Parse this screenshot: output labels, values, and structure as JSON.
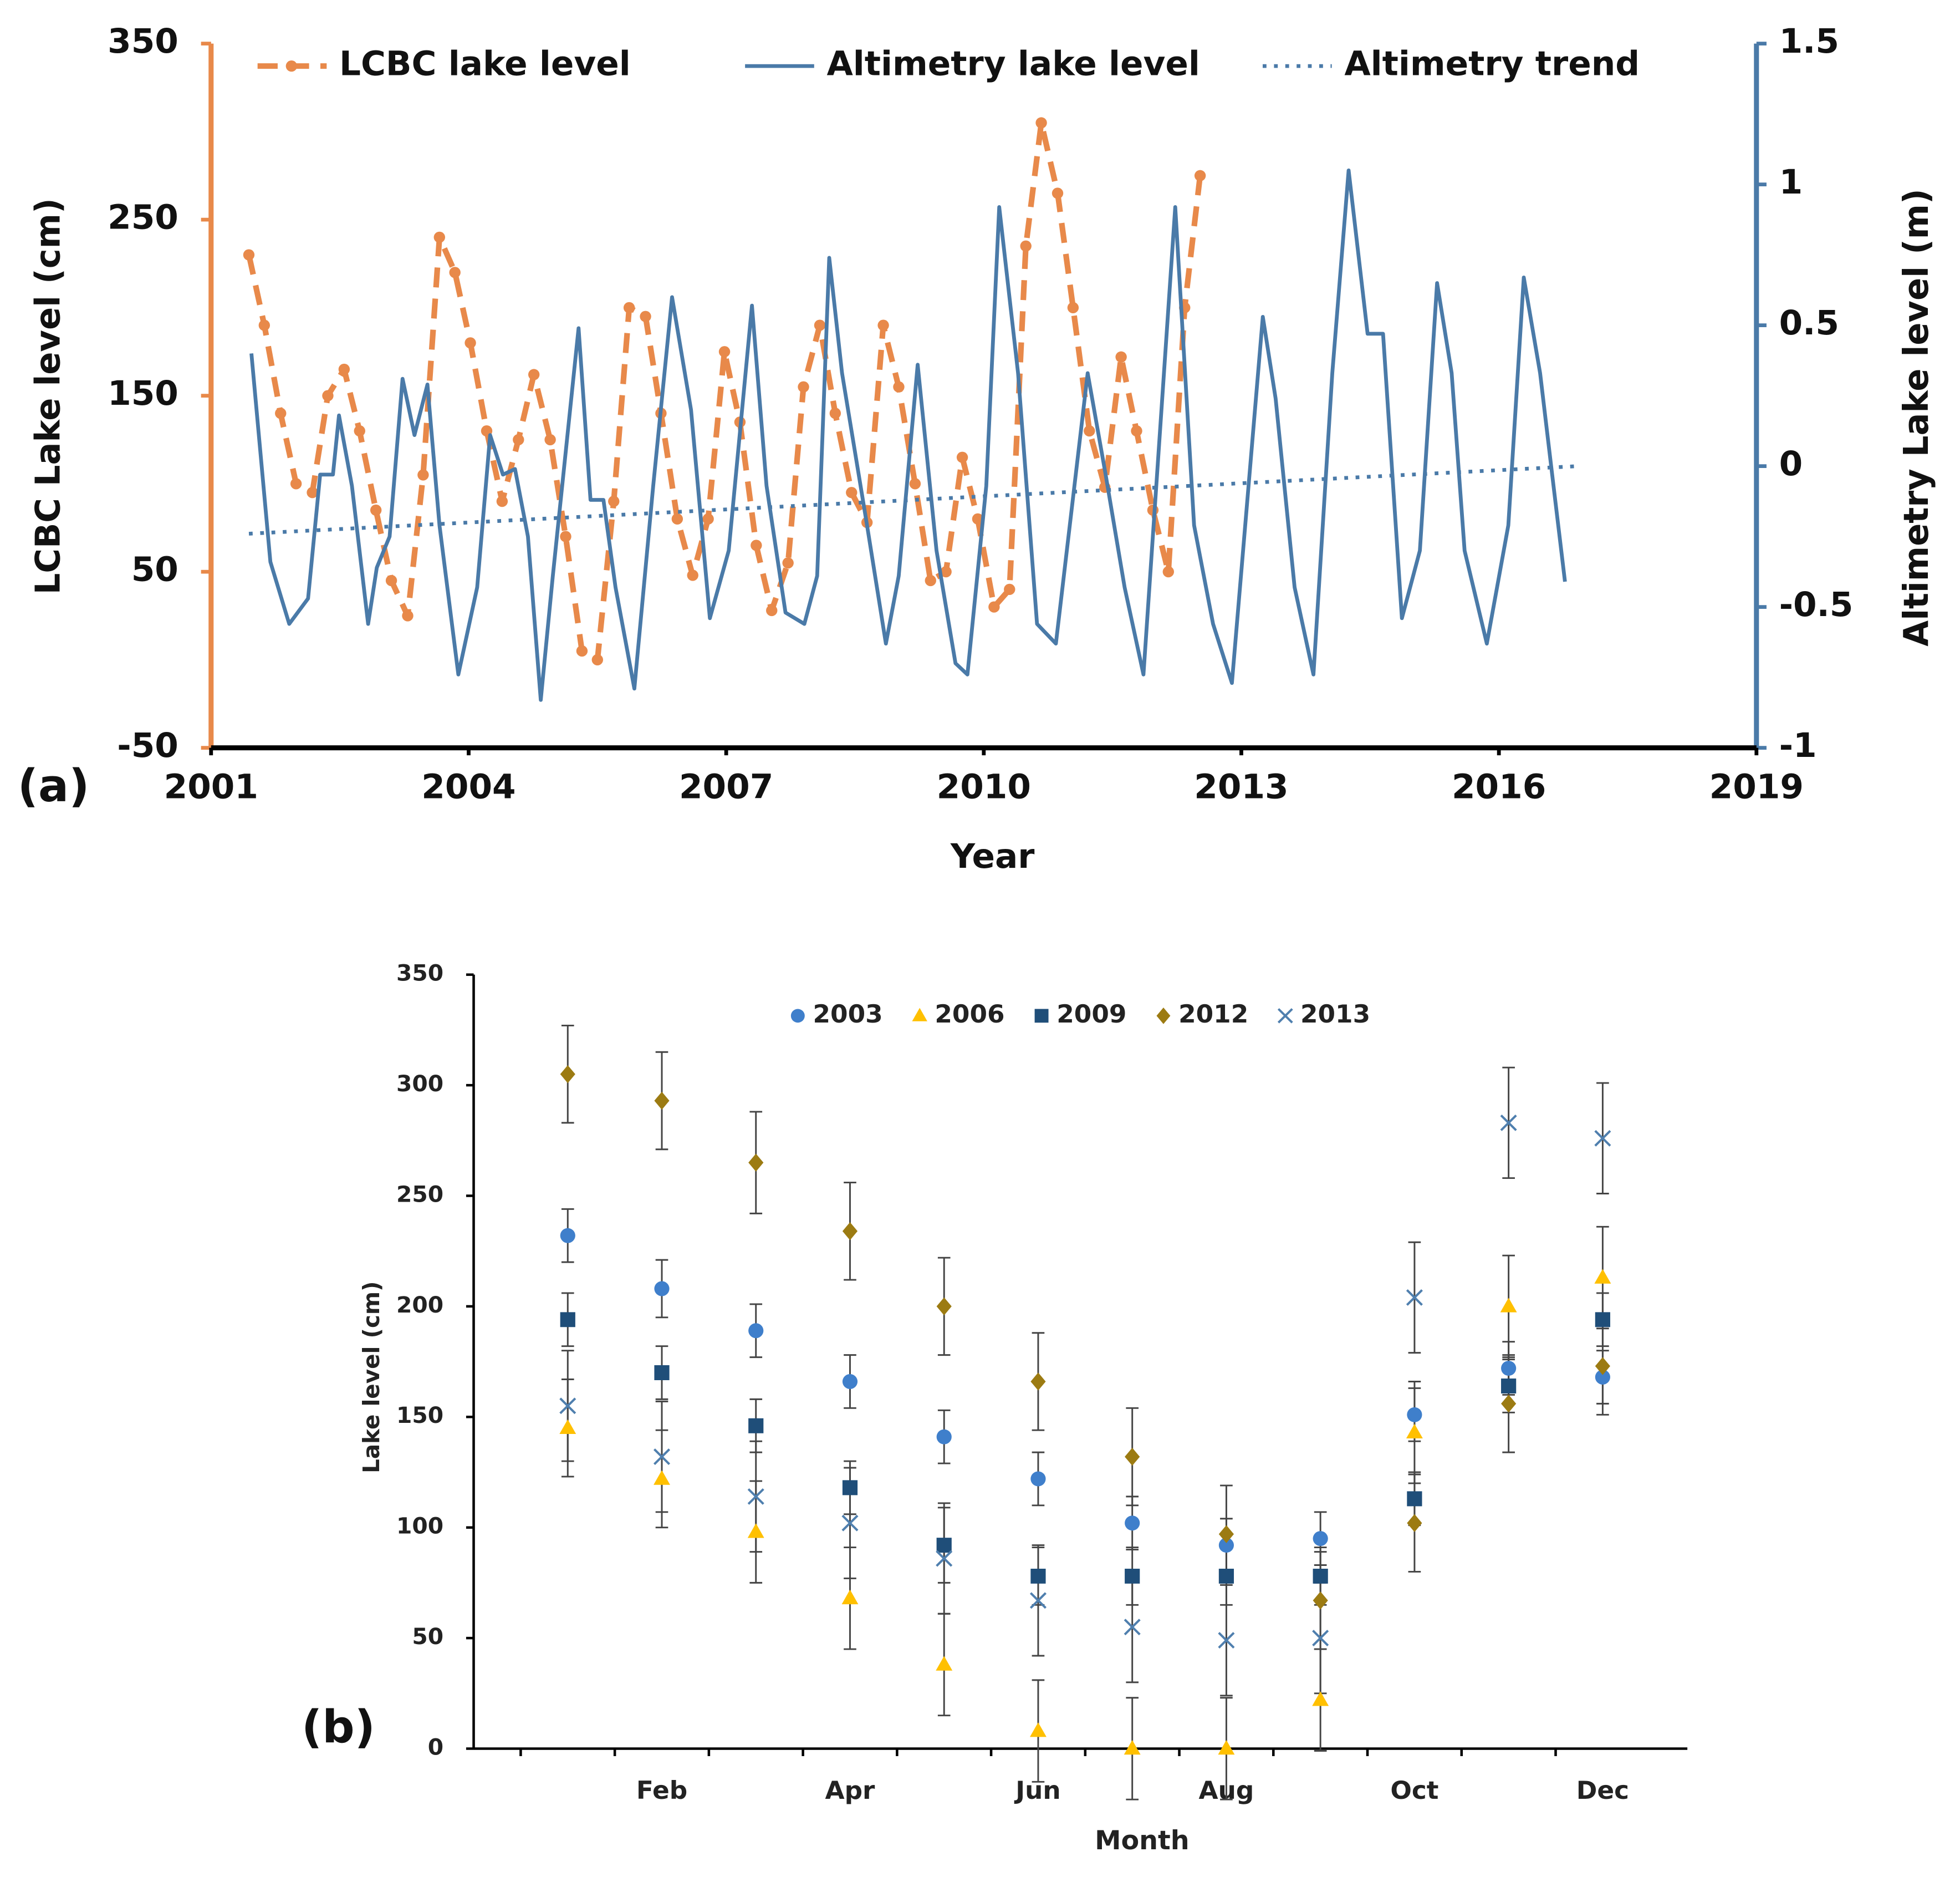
{
  "chart_data": [
    {
      "type": "line",
      "annotation": "(a)",
      "xlabel": "Year",
      "ylabel": "LCBC Lake level (cm)",
      "y2label": "Altimetry Lake level (m)",
      "xlim": [
        2001,
        2019
      ],
      "xticks": [
        2001,
        2004,
        2007,
        2010,
        2013,
        2016,
        2019
      ],
      "ylim": [
        -50,
        350
      ],
      "yticks": [
        -50,
        50,
        150,
        250,
        350
      ],
      "y2lim": [
        -1,
        1.5
      ],
      "y2ticks": [
        -1,
        -0.5,
        0,
        0.5,
        1,
        1.5
      ],
      "legend": "top",
      "series": [
        {
          "name": "LCBC lake level",
          "color": "#e8894a",
          "style": "dashed",
          "marker": "circle",
          "x": [
            2001.44,
            2001.62,
            2001.81,
            2001.99,
            2002.18,
            2002.36,
            2002.55,
            2002.73,
            2002.92,
            2003.1,
            2003.29,
            2003.47,
            2003.66,
            2003.84,
            2004.02,
            2004.21,
            2004.39,
            2004.58,
            2004.76,
            2004.95,
            2005.13,
            2005.32,
            2005.5,
            2005.69,
            2005.87,
            2006.06,
            2006.24,
            2006.43,
            2006.61,
            2006.79,
            2006.98,
            2007.16,
            2007.35,
            2007.53,
            2007.72,
            2007.9,
            2008.09,
            2008.27,
            2008.46,
            2008.64,
            2008.83,
            2009.01,
            2009.2,
            2009.38,
            2009.56,
            2009.75,
            2009.93,
            2010.12,
            2010.3,
            2010.49,
            2010.67,
            2010.86,
            2011.04,
            2011.23,
            2011.41,
            2011.6,
            2011.78,
            2011.97,
            2012.15,
            2012.34,
            2012.52
          ],
          "values": [
            230,
            190,
            140,
            100,
            95,
            150,
            165,
            130,
            85,
            45,
            25,
            105,
            240,
            220,
            180,
            130,
            90,
            125,
            162,
            125,
            70,
            5,
            0,
            90,
            200,
            195,
            140,
            80,
            48,
            80,
            175,
            135,
            65,
            28,
            55,
            155,
            190,
            140,
            95,
            78,
            190,
            155,
            100,
            45,
            50,
            115,
            80,
            30,
            40,
            235,
            305,
            265,
            200,
            130,
            98,
            172,
            130,
            85,
            50,
            200,
            275
          ]
        },
        {
          "name": "Altimetry lake level",
          "color": "#4a7aa8",
          "style": "solid",
          "axis": "y2",
          "x": [
            2001.47,
            2001.69,
            2001.91,
            2002.13,
            2002.27,
            2002.42,
            2002.49,
            2002.64,
            2002.83,
            2002.93,
            2003.08,
            2003.23,
            2003.37,
            2003.52,
            2003.66,
            2003.88,
            2004.1,
            2004.25,
            2004.4,
            2004.54,
            2004.69,
            2004.84,
            2004.98,
            2005.28,
            2005.42,
            2005.57,
            2005.71,
            2005.93,
            2006.15,
            2006.37,
            2006.59,
            2006.81,
            2007.03,
            2007.3,
            2007.47,
            2007.69,
            2007.91,
            2008.06,
            2008.2,
            2008.35,
            2008.64,
            2008.86,
            2009.01,
            2009.23,
            2009.45,
            2009.67,
            2009.81,
            2010.03,
            2010.18,
            2010.4,
            2010.62,
            2010.84,
            2011.21,
            2011.42,
            2011.64,
            2011.86,
            2012.23,
            2012.45,
            2012.67,
            2012.89,
            2013.25,
            2013.4,
            2013.62,
            2013.84,
            2014.06,
            2014.25,
            2014.47,
            2014.65,
            2014.87,
            2015.08,
            2015.28,
            2015.45,
            2015.6,
            2015.86,
            2016.11,
            2016.29,
            2016.48,
            2016.62,
            2016.77
          ],
          "values": [
            0.4,
            -0.34,
            -0.56,
            -0.47,
            -0.03,
            -0.03,
            0.18,
            -0.07,
            -0.56,
            -0.36,
            -0.25,
            0.31,
            0.11,
            0.29,
            -0.21,
            -0.74,
            -0.43,
            0.11,
            -0.03,
            -0.01,
            -0.25,
            -0.83,
            -0.39,
            0.49,
            -0.12,
            -0.12,
            -0.43,
            -0.79,
            -0.07,
            0.6,
            0.2,
            -0.54,
            -0.3,
            0.57,
            -0.07,
            -0.52,
            -0.56,
            -0.39,
            0.74,
            0.33,
            -0.21,
            -0.63,
            -0.39,
            0.36,
            -0.3,
            -0.7,
            -0.74,
            -0.07,
            0.92,
            0.33,
            -0.56,
            -0.63,
            0.33,
            -0.03,
            -0.43,
            -0.74,
            0.92,
            -0.21,
            -0.56,
            -0.77,
            0.53,
            0.24,
            -0.43,
            -0.74,
            0.33,
            1.05,
            0.47,
            0.47,
            -0.54,
            -0.3,
            0.65,
            0.33,
            -0.3,
            -0.63,
            -0.21,
            0.67,
            0.33,
            -0.03,
            -0.41
          ]
        },
        {
          "name": "Altimetry trend",
          "color": "#4a7aa8",
          "style": "dotted",
          "axis": "y2",
          "x": [
            2001.44,
            2016.92
          ],
          "values": [
            -0.24,
            0
          ]
        }
      ]
    },
    {
      "type": "scatter",
      "annotation": "(b)",
      "xlabel": "Month",
      "ylabel": "Lake level (cm)",
      "categories": [
        null,
        "Feb",
        null,
        "Apr",
        null,
        "Jun",
        null,
        "Aug",
        null,
        "Oct",
        null,
        "Dec"
      ],
      "ylim": [
        0,
        350
      ],
      "yticks": [
        0,
        50,
        100,
        150,
        200,
        250,
        300,
        350
      ],
      "legend": "top",
      "series": [
        {
          "name": "2003",
          "color": "#3f7fcb",
          "marker": "circle",
          "values": [
            232,
            208,
            189,
            166,
            141,
            122,
            102,
            92,
            95,
            151,
            172,
            168
          ],
          "errors": [
            12,
            13,
            12,
            12,
            12,
            12,
            12,
            12,
            12,
            12,
            12,
            12
          ]
        },
        {
          "name": "2006",
          "color": "#ffc000",
          "marker": "triangle",
          "values": [
            145,
            122,
            98,
            68,
            38,
            8,
            0,
            0,
            22,
            143,
            200,
            213
          ],
          "errors": [
            22,
            22,
            23,
            23,
            23,
            23,
            23,
            23,
            23,
            23,
            23,
            23
          ]
        },
        {
          "name": "2009",
          "color": "#1f4e79",
          "marker": "square",
          "values": [
            194,
            170,
            146,
            118,
            92,
            78,
            78,
            78,
            78,
            113,
            164,
            194
          ],
          "errors": [
            12,
            12,
            12,
            12,
            17,
            13,
            13,
            13,
            13,
            12,
            12,
            12
          ]
        },
        {
          "name": "2012",
          "color": "#9c7b12",
          "marker": "diamond",
          "values": [
            305,
            293,
            265,
            234,
            200,
            166,
            132,
            97,
            67,
            102,
            156,
            173
          ],
          "errors": [
            22,
            22,
            23,
            22,
            22,
            22,
            22,
            22,
            22,
            22,
            22,
            22
          ]
        },
        {
          "name": "2013",
          "color": "#4f7fae",
          "marker": "x",
          "values": [
            155,
            132,
            114,
            102,
            86,
            67,
            55,
            49,
            50,
            204,
            283,
            276
          ],
          "errors": [
            25,
            25,
            25,
            25,
            25,
            25,
            25,
            25,
            25,
            25,
            25,
            25
          ]
        }
      ]
    }
  ]
}
